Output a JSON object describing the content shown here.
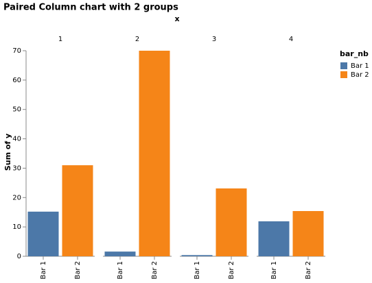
{
  "chart_data": {
    "type": "bar",
    "title": "Paired Column chart with 2 groups",
    "facet_title": "x",
    "y_title": "Sum of y",
    "legend_title": "bar_nb",
    "categories": [
      "1",
      "2",
      "3",
      "4"
    ],
    "series": [
      {
        "name": "Bar 1",
        "color": "#4c78a8",
        "values": [
          15.2,
          1.6,
          0.4,
          11.9
        ]
      },
      {
        "name": "Bar 2",
        "color": "#f58518",
        "values": [
          31,
          70,
          23.1,
          15.4
        ]
      }
    ],
    "ylim": [
      0,
      70
    ],
    "yticks": [
      0,
      10,
      20,
      30,
      40,
      50,
      60,
      70
    ],
    "grid": false
  }
}
